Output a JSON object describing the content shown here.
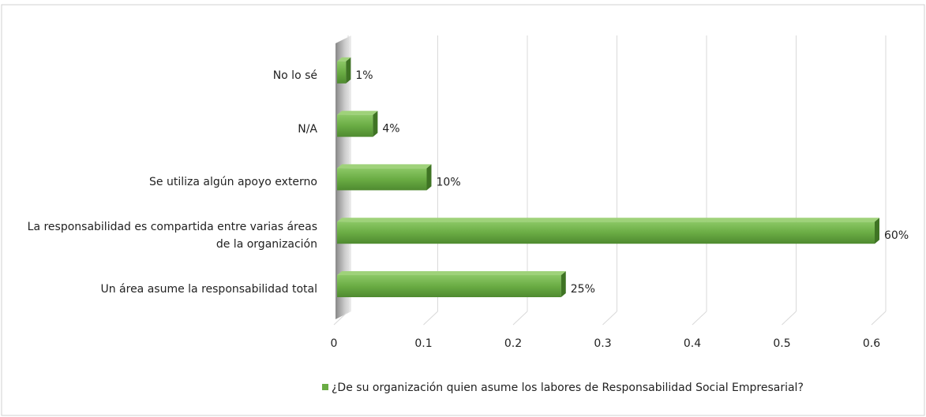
{
  "chart_data": {
    "type": "bar",
    "orientation": "horizontal",
    "categories": [
      "Un área asume la responsabilidad total",
      "La responsabilidad es compartida entre varias áreas de la organización",
      "Se utiliza algún apoyo externo",
      "N/A",
      "No lo sé"
    ],
    "series": [
      {
        "name": "¿De su organización quien asume los labores de Responsabilidad Social Empresarial?",
        "color": "#6aac44",
        "values": [
          0.25,
          0.6,
          0.1,
          0.04,
          0.01
        ],
        "value_labels": [
          "25%",
          "60%",
          "10%",
          "4%",
          "1%"
        ]
      }
    ],
    "xlim": [
      0,
      0.6
    ],
    "xticks": [
      0,
      0.1,
      0.2,
      0.3,
      0.4,
      0.5,
      0.6
    ],
    "grid": true,
    "legend": "bottom"
  }
}
